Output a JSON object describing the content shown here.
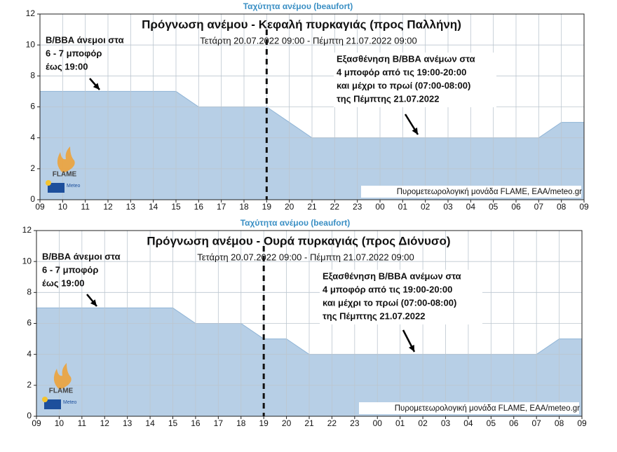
{
  "chart_data": [
    {
      "type": "area",
      "header": "Ταχύτητα ανέμου (beaufort)",
      "title": "Πρόγνωση ανέμου - Κεφαλή πυρκαγιάς (προς Παλλήνη)",
      "subtitle": "Τετάρτη 20.07.2022 09:00 - Πέμπτη 21.07.2022 09:00",
      "categories": [
        "09",
        "10",
        "11",
        "12",
        "13",
        "14",
        "15",
        "16",
        "17",
        "18",
        "19",
        "20",
        "21",
        "22",
        "23",
        "00",
        "01",
        "02",
        "03",
        "04",
        "05",
        "06",
        "07",
        "08",
        "09"
      ],
      "values": [
        7,
        7,
        7,
        7,
        7,
        7,
        7,
        6,
        6,
        6,
        6,
        5,
        4,
        4,
        4,
        4,
        4,
        4,
        4,
        4,
        4,
        4,
        4,
        5,
        5
      ],
      "color": "#b7cfe6",
      "ylim": [
        0,
        12
      ],
      "yticks": [
        0,
        2,
        4,
        6,
        8,
        10,
        12
      ],
      "grid": true,
      "vline_at": "19",
      "annotations": [
        {
          "lines": [
            "Β/ΒΒΑ άνεμοι στα",
            "6 - 7 μποφόρ",
            "έως 19:00"
          ]
        },
        {
          "lines": [
            "Εξασθένηση Β/ΒΒΑ ανέμων στα",
            "4 μποφόρ από τις 19:00-20:00",
            "και μέχρι το πρωί (07:00-08:00)",
            "της Πέμπτης 21.07.2022"
          ]
        }
      ],
      "credit": "Πυρομετεωρολογική μονάδα FLAME, ΕΑΑ/meteo.gr",
      "logo": [
        "FLAME",
        "Meteo"
      ]
    },
    {
      "type": "area",
      "header": "Ταχύτητα ανέμου (beaufort)",
      "title": "Πρόγνωση ανέμου - Ουρά πυρκαγιάς (προς Διόνυσο)",
      "subtitle": "Τετάρτη 20.07.2022 09:00 - Πέμπτη 21.07.2022 09:00",
      "categories": [
        "09",
        "10",
        "11",
        "12",
        "13",
        "14",
        "15",
        "16",
        "17",
        "18",
        "19",
        "20",
        "21",
        "22",
        "23",
        "00",
        "01",
        "02",
        "03",
        "04",
        "05",
        "06",
        "07",
        "08",
        "09"
      ],
      "values": [
        7,
        7,
        7,
        7,
        7,
        7,
        7,
        6,
        6,
        6,
        5,
        5,
        4,
        4,
        4,
        4,
        4,
        4,
        4,
        4,
        4,
        4,
        4,
        5,
        5
      ],
      "color": "#b7cfe6",
      "ylim": [
        0,
        12
      ],
      "yticks": [
        0,
        2,
        4,
        6,
        8,
        10,
        12
      ],
      "grid": true,
      "vline_at": "19",
      "annotations": [
        {
          "lines": [
            "Β/ΒΒΑ άνεμοι στα",
            "6 - 7 μποφόρ",
            "έως 19:00"
          ]
        },
        {
          "lines": [
            "Εξασθένηση Β/ΒΒΑ ανέμων στα",
            "4 μποφόρ από τις 19:00-20:00",
            "και μέχρι το πρωί (07:00-08:00)",
            "της Πέμπτης 21.07.2022"
          ]
        }
      ],
      "credit": "Πυρομετεωρολογική μονάδα FLAME, ΕΑΑ/meteo.gr",
      "logo": [
        "FLAME",
        "Meteo"
      ]
    }
  ]
}
